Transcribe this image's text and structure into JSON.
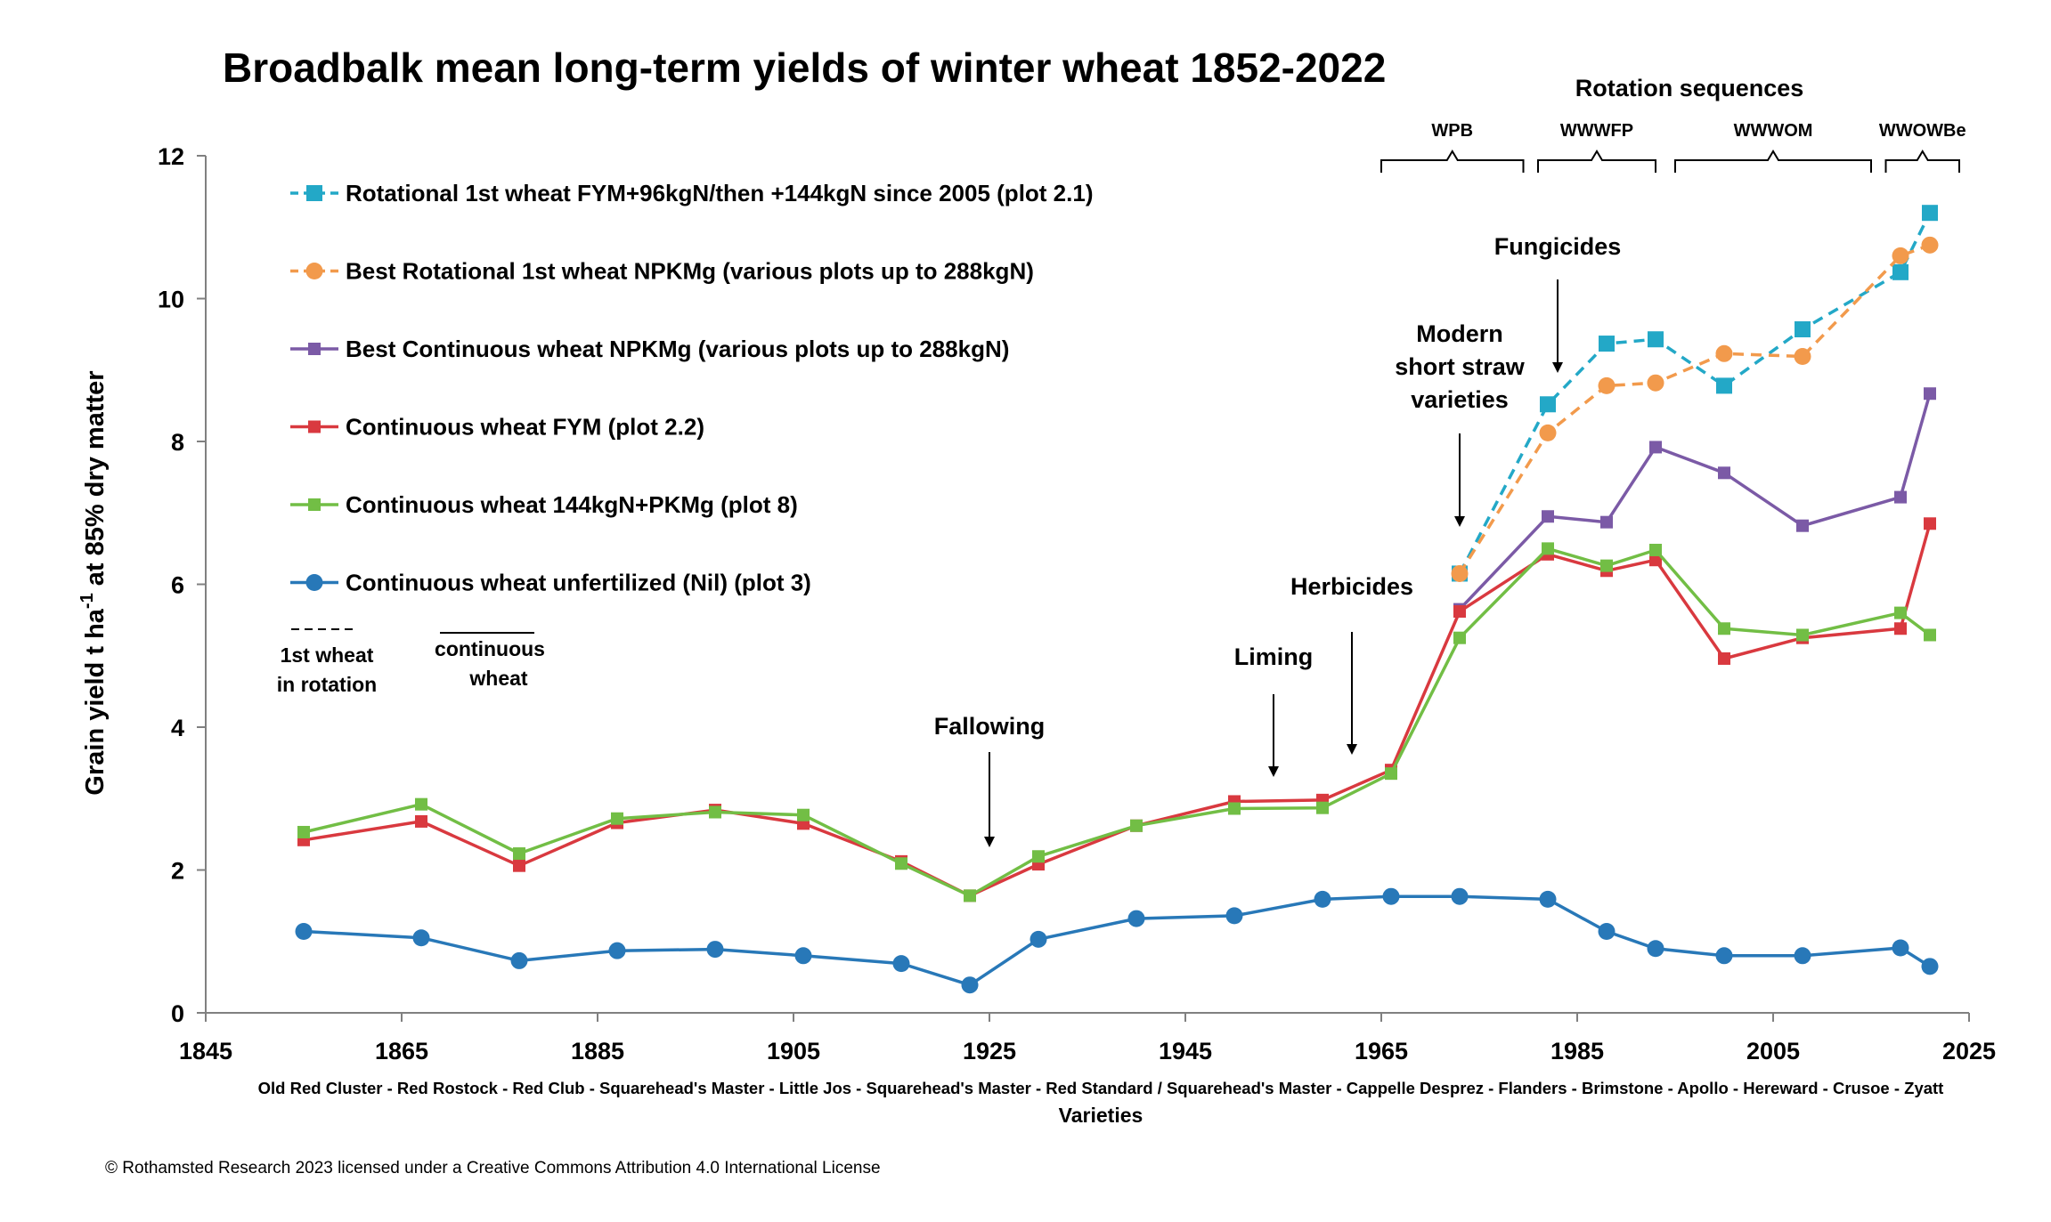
{
  "chart_data": {
    "type": "line",
    "title": "Broadbalk mean long-term yields of winter wheat 1852-2022",
    "ylabel_main": "Grain yield t ha",
    "ylabel_sup": "-1",
    "ylabel_rest": " at 85% dry matter",
    "xlabel": "Varieties",
    "varieties": "Old Red Cluster - Red Rostock - Red Club - Squarehead's Master - Little Jos - Squarehead's Master - Red Standard / Squarehead's Master - Cappelle Desprez - Flanders - Brimstone - Apollo - Hereward - Crusoe - Zyatt",
    "xlim": [
      1845,
      2025
    ],
    "ylim": [
      0,
      12
    ],
    "xticks": [
      1845,
      1865,
      1885,
      1905,
      1925,
      1945,
      1965,
      1985,
      2005,
      2025
    ],
    "yticks": [
      0,
      2,
      4,
      6,
      8,
      10,
      12
    ],
    "series": [
      {
        "name": "Rotational 1st wheat  FYM+96kgN/then +144kgN since 2005 (plot 2.1)",
        "color": "#23a8c7",
        "marker": "square",
        "dash": true,
        "x": [
          1973,
          1982,
          1988,
          1993,
          2000,
          2008,
          2018,
          2021
        ],
        "y": [
          6.15,
          8.52,
          9.37,
          9.43,
          8.78,
          9.57,
          10.37,
          11.2
        ]
      },
      {
        "name": "Best Rotational 1st wheat  NPKMg (various plots up to 288kgN)",
        "color": "#f29a4c",
        "marker": "circle",
        "dash": true,
        "x": [
          1973,
          1982,
          1988,
          1993,
          2000,
          2008,
          2018,
          2021
        ],
        "y": [
          6.15,
          8.12,
          8.78,
          8.82,
          9.23,
          9.19,
          10.6,
          10.75
        ]
      },
      {
        "name": "Best Continuous wheat NPKMg (various plots up to 288kgN)",
        "color": "#7b5aa6",
        "marker": "square",
        "dash": false,
        "x": [
          1973,
          1982,
          1988,
          1993,
          2000,
          2008,
          2018,
          2021
        ],
        "y": [
          5.65,
          6.95,
          6.87,
          7.92,
          7.56,
          6.82,
          7.22,
          8.67
        ]
      },
      {
        "name": "Continuous wheat FYM (plot 2.2)",
        "color": "#d9393f",
        "marker": "square",
        "dash": false,
        "x": [
          1855,
          1867,
          1877,
          1887,
          1897,
          1906,
          1916,
          1923,
          1930,
          1940,
          1950,
          1959,
          1966,
          1973,
          1982,
          1988,
          1993,
          2000,
          2008,
          2018,
          2021
        ],
        "y": [
          2.42,
          2.68,
          2.06,
          2.66,
          2.84,
          2.65,
          2.12,
          1.64,
          2.08,
          2.62,
          2.96,
          2.98,
          3.4,
          5.62,
          6.42,
          6.19,
          6.34,
          4.96,
          5.25,
          5.38,
          6.85
        ]
      },
      {
        "name": "Continuous wheat 144kgN+PKMg (plot 8)",
        "color": "#72be45",
        "marker": "square",
        "dash": false,
        "x": [
          1855,
          1867,
          1877,
          1887,
          1897,
          1906,
          1916,
          1923,
          1930,
          1940,
          1950,
          1959,
          1966,
          1973,
          1982,
          1988,
          1993,
          2000,
          2008,
          2018,
          2021
        ],
        "y": [
          2.53,
          2.92,
          2.23,
          2.72,
          2.81,
          2.77,
          2.09,
          1.64,
          2.19,
          2.62,
          2.86,
          2.87,
          3.35,
          5.25,
          6.5,
          6.26,
          6.48,
          5.38,
          5.29,
          5.6,
          5.29
        ]
      },
      {
        "name": "Continuous wheat unfertilized (Nil) (plot 3)",
        "color": "#2878b8",
        "marker": "circle",
        "dash": false,
        "x": [
          1855,
          1867,
          1877,
          1887,
          1897,
          1906,
          1916,
          1923,
          1930,
          1940,
          1950,
          1959,
          1966,
          1973,
          1982,
          1988,
          1993,
          2000,
          2008,
          2018,
          2021
        ],
        "y": [
          1.14,
          1.05,
          0.73,
          0.87,
          0.89,
          0.8,
          0.69,
          0.39,
          1.03,
          1.32,
          1.36,
          1.59,
          1.63,
          1.63,
          1.59,
          1.14,
          0.9,
          0.8,
          0.8,
          0.91,
          0.65
        ]
      }
    ],
    "legend_key": {
      "dashed_label_line1": "1st wheat",
      "dashed_label_line2": "in rotation",
      "solid_label_line1": "continuous",
      "solid_label_line2": "wheat"
    },
    "annotations": [
      {
        "lines": [
          "Fallowing"
        ],
        "x": 1925
      },
      {
        "lines": [
          "Liming"
        ],
        "x": 1954
      },
      {
        "lines": [
          "Herbicides"
        ],
        "x": 1962
      },
      {
        "lines": [
          "Modern",
          "short straw",
          "varieties"
        ],
        "x": 1973
      },
      {
        "lines": [
          "Fungicides"
        ],
        "x": 1983
      }
    ],
    "rotation": {
      "title": "Rotation sequences",
      "groups": [
        {
          "label": "WPB",
          "x0": 1965,
          "x1": 1979.5
        },
        {
          "label": "WWWFP",
          "x0": 1981,
          "x1": 1993
        },
        {
          "label": "WWWOM",
          "x0": 1995,
          "x1": 2015
        },
        {
          "label": "WWOWBe",
          "x0": 2016.5,
          "x1": 2024
        }
      ]
    }
  },
  "footer": {
    "copyright": "© Rothamsted Research 2023 licensed under a Creative Commons Attribution 4.0 International License"
  },
  "colors": {
    "axis": "#808080",
    "text": "#000000"
  }
}
